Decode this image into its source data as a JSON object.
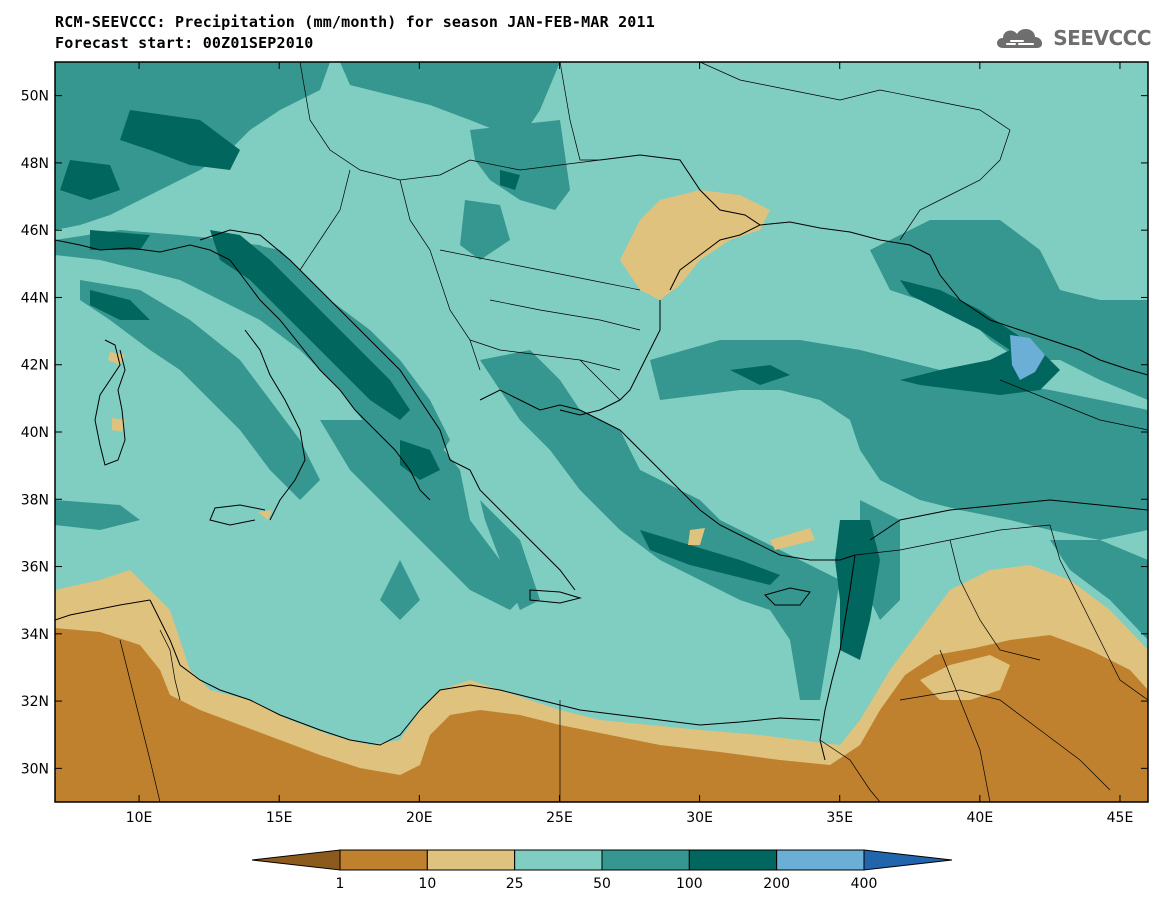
{
  "header": {
    "title_line1": "RCM-SEEVCCC: Precipitation (mm/month) for season JAN-FEB-MAR 2011",
    "title_line2": "Forecast start: 00Z01SEP2010"
  },
  "logo": {
    "text": "SEEVCCC",
    "icon": "cloud-logo-icon"
  },
  "map": {
    "lat_labels": [
      "50N",
      "48N",
      "46N",
      "44N",
      "42N",
      "40N",
      "38N",
      "36N",
      "34N",
      "32N",
      "30N"
    ],
    "lon_labels": [
      "10E",
      "15E",
      "20E",
      "25E",
      "30E",
      "35E",
      "40E",
      "45E"
    ],
    "lat_range": [
      29,
      51
    ],
    "lon_range": [
      7,
      46
    ],
    "colors": {
      "below_1": "#8c5a1c",
      "1_10": "#bf812d",
      "10_25": "#dfc27d",
      "25_50": "#80cdc1",
      "50_100": "#35978f",
      "100_200": "#01665e",
      "200_400": "#6baed6",
      "above_400": "#2166ac"
    }
  },
  "colorbar": {
    "labels": [
      "1",
      "10",
      "25",
      "50",
      "100",
      "200",
      "400"
    ],
    "colors": [
      "#8c5a1c",
      "#bf812d",
      "#dfc27d",
      "#80cdc1",
      "#35978f",
      "#01665e",
      "#6baed6",
      "#2166ac"
    ]
  }
}
